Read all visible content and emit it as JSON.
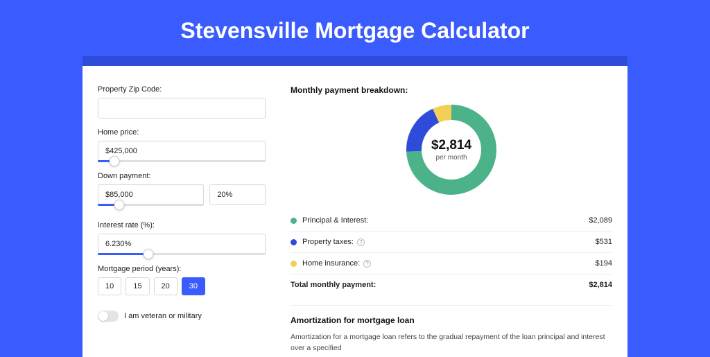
{
  "page": {
    "title": "Stevensville Mortgage Calculator",
    "background_color": "#3a5cff",
    "accent_band_color": "#2e4cd9"
  },
  "form": {
    "zip": {
      "label": "Property Zip Code:",
      "value": ""
    },
    "home_price": {
      "label": "Home price:",
      "value": "$425,000",
      "slider_pct": 10
    },
    "down_payment": {
      "label": "Down payment:",
      "amount": "$85,000",
      "percent": "20%",
      "slider_pct": 20
    },
    "interest_rate": {
      "label": "Interest rate (%):",
      "value": "6.230%",
      "slider_pct": 30
    },
    "period": {
      "label": "Mortgage period (years):",
      "options": [
        "10",
        "15",
        "20",
        "30"
      ],
      "selected": "30"
    },
    "veteran": {
      "label": "I am veteran or military",
      "on": false
    }
  },
  "breakdown": {
    "title": "Monthly payment breakdown:",
    "donut": {
      "amount": "$2,814",
      "sub": "per month",
      "size": 130,
      "thickness": 22,
      "segments": [
        {
          "name": "Principal & Interest",
          "value": 2089,
          "color": "#4bb28a"
        },
        {
          "name": "Property taxes",
          "value": 531,
          "color": "#2e4cd9"
        },
        {
          "name": "Home insurance",
          "value": 194,
          "color": "#f3cf55"
        }
      ]
    },
    "rows": [
      {
        "label": "Principal & Interest:",
        "value": "$2,089",
        "color": "#4bb28a",
        "info": false
      },
      {
        "label": "Property taxes:",
        "value": "$531",
        "color": "#2e4cd9",
        "info": true
      },
      {
        "label": "Home insurance:",
        "value": "$194",
        "color": "#f3cf55",
        "info": true
      }
    ],
    "total": {
      "label": "Total monthly payment:",
      "value": "$2,814"
    }
  },
  "amortization": {
    "title": "Amortization for mortgage loan",
    "text": "Amortization for a mortgage loan refers to the gradual repayment of the loan principal and interest over a specified"
  }
}
